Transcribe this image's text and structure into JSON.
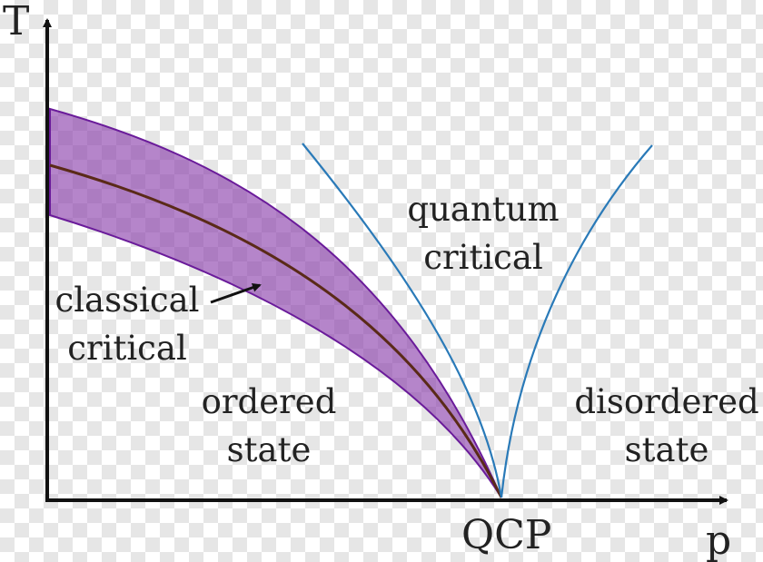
{
  "axes": {
    "y_label": "T",
    "x_label": "p",
    "origin_label": "QCP"
  },
  "regions": {
    "quantum_critical": [
      "quantum",
      "critical"
    ],
    "classical_critical": [
      "classical",
      "critical"
    ],
    "ordered_state": [
      "ordered",
      "state"
    ],
    "disordered_state": [
      "disordered",
      "state"
    ]
  },
  "colors": {
    "band_fill": "#8e44ad",
    "band_edge": "#6a1b9a",
    "transition_line": "#5a2a18",
    "crossover_lines": "#2a7ab8",
    "axes": "#111111"
  }
}
